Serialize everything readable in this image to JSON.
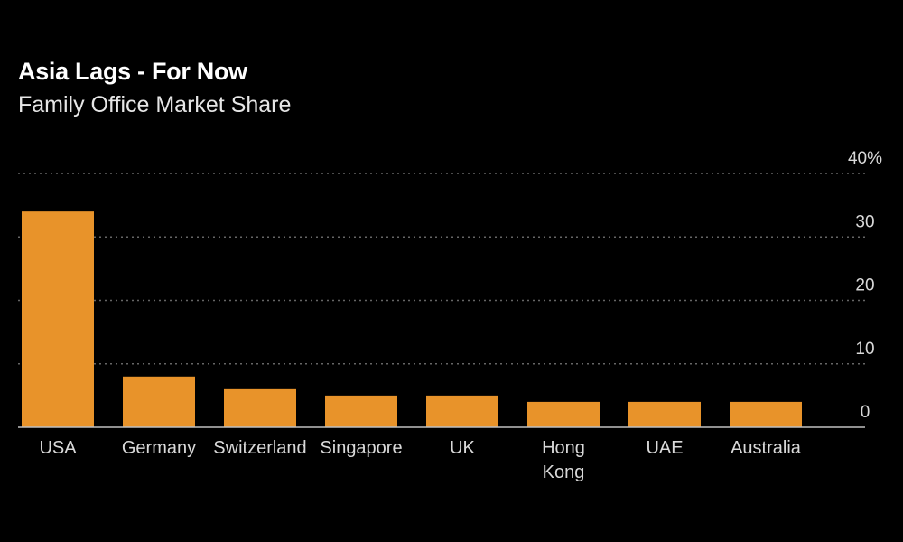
{
  "chart_data": {
    "type": "bar",
    "title": "Asia Lags - For Now",
    "subtitle": "Family Office Market Share",
    "categories": [
      "USA",
      "Germany",
      "Switzerland",
      "Singapore",
      "UK",
      "Hong Kong",
      "UAE",
      "Australia"
    ],
    "category_lines": [
      [
        "USA"
      ],
      [
        "Germany"
      ],
      [
        "Switzerland"
      ],
      [
        "Singapore"
      ],
      [
        "UK"
      ],
      [
        "Hong",
        "Kong"
      ],
      [
        "UAE"
      ],
      [
        "Australia"
      ]
    ],
    "values": [
      34,
      8,
      6,
      5,
      5,
      4,
      4,
      4
    ],
    "unit": "%",
    "ylim": [
      0,
      40
    ],
    "yticks": [
      0,
      10,
      20,
      30,
      40
    ],
    "ytick_labels": [
      "0",
      "10",
      "20",
      "30",
      "40%"
    ],
    "ytick_side": "right",
    "grid": true,
    "legend": "none",
    "bar_color": "#e8932a",
    "grid_color": "#666666",
    "background": "#000000"
  }
}
